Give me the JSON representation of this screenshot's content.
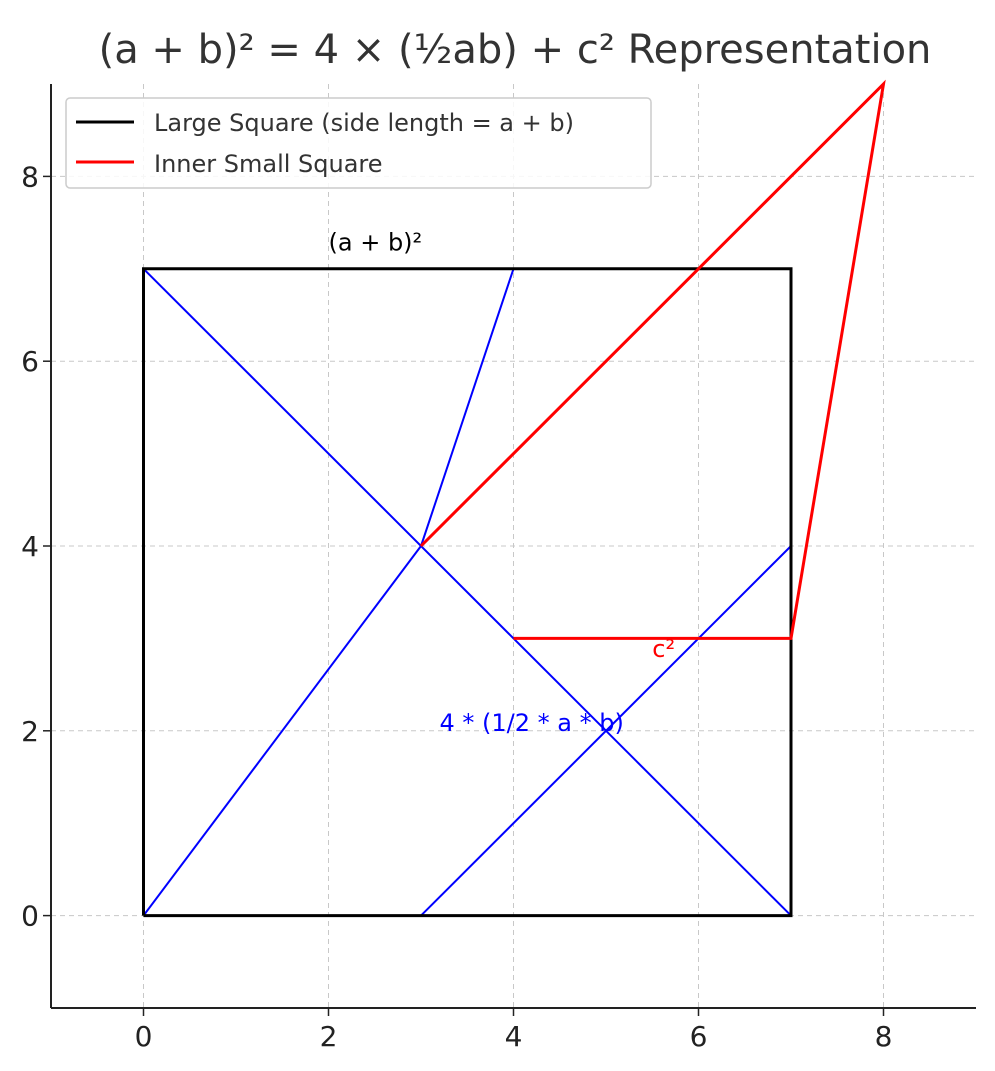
{
  "chart_data": {
    "type": "line",
    "title": "(a + b)² = 4 × (½ab) + c² Representation",
    "xlabel": "",
    "ylabel": "",
    "xlim": [
      -1,
      9
    ],
    "ylim": [
      -1,
      9
    ],
    "xticks": [
      0,
      2,
      4,
      6,
      8
    ],
    "yticks": [
      0,
      2,
      4,
      6,
      8
    ],
    "grid": true,
    "legend_position": "top-left",
    "series": [
      {
        "name": "Large Square (side length = a + b)",
        "color": "#000000",
        "points": [
          [
            0,
            0
          ],
          [
            7,
            0
          ],
          [
            7,
            7
          ],
          [
            0,
            7
          ],
          [
            0,
            0
          ]
        ]
      },
      {
        "name": "Inner Small Square",
        "color": "#ff0000",
        "points": [
          [
            3,
            4
          ],
          [
            8,
            9
          ],
          [
            7,
            3
          ],
          [
            4,
            3
          ]
        ]
      }
    ],
    "triangle_lines": {
      "color": "#0000ff",
      "segments": [
        [
          [
            0,
            0
          ],
          [
            3,
            4
          ]
        ],
        [
          [
            3,
            4
          ],
          [
            4,
            7
          ]
        ],
        [
          [
            0,
            7
          ],
          [
            7,
            0
          ]
        ],
        [
          [
            3,
            0
          ],
          [
            7,
            4
          ]
        ]
      ]
    },
    "annotations": [
      {
        "text": "(a + b)²",
        "x": 2,
        "y": 7.2,
        "color": "#000000"
      },
      {
        "text": "c²",
        "x": 5.5,
        "y": 2.8,
        "color": "#ff0000"
      },
      {
        "text": "4 * (1/2 * a * b)",
        "x": 3.2,
        "y": 2.0,
        "color": "#0000ff"
      }
    ]
  }
}
